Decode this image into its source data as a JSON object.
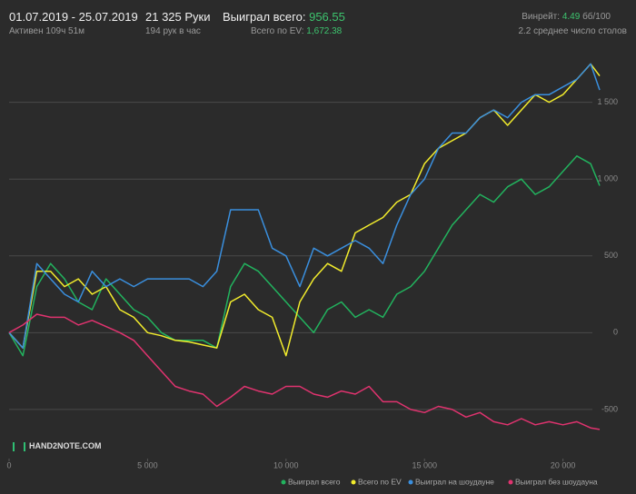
{
  "header": {
    "period": "01.07.2019 - 25.07.2019",
    "active": "Активен 109ч 51м",
    "hands": "21 325 Руки",
    "hands_per_hour": "194 рук в час",
    "won_label": "Выиграл всего:",
    "won_value": "956.55",
    "ev_label": "Всего по EV:",
    "ev_value": "1,672.38",
    "winrate_label": "Винрейт:",
    "winrate_value": "4.49",
    "winrate_unit": "бб/100",
    "tables": "2.2 среднее число столов",
    "logo": "HAND2NOTE.COM"
  },
  "chart_data": {
    "type": "line",
    "x": [
      0,
      500,
      1000,
      1500,
      2000,
      2500,
      3000,
      3500,
      4000,
      4500,
      5000,
      5500,
      6000,
      6500,
      7000,
      7500,
      8000,
      8500,
      9000,
      9500,
      10000,
      10500,
      11000,
      11500,
      12000,
      12500,
      13000,
      13500,
      14000,
      14500,
      15000,
      15500,
      16000,
      16500,
      17000,
      17500,
      18000,
      18500,
      19000,
      19500,
      20000,
      20500,
      21000,
      21325
    ],
    "xlim": [
      0,
      21325
    ],
    "xticks": [
      0,
      {
        "value": 5000,
        "label": "5 000"
      },
      {
        "value": 10000,
        "label": "10 000"
      },
      {
        "value": 15000,
        "label": "15 000"
      },
      {
        "value": 20000,
        "label": "20 000"
      }
    ],
    "ylim": [
      -820,
      1900
    ],
    "yticks": [
      -500,
      0,
      500,
      {
        "value": 1000,
        "label": "1 000"
      },
      {
        "value": 1500,
        "label": "1 500"
      }
    ],
    "grid": true,
    "series": [
      {
        "name": "Выиграл всего",
        "color": "#22b35e",
        "values": [
          0,
          -150,
          300,
          450,
          350,
          200,
          150,
          350,
          250,
          150,
          100,
          0,
          -50,
          -50,
          -50,
          -100,
          300,
          450,
          400,
          300,
          200,
          100,
          0,
          150,
          200,
          100,
          150,
          100,
          250,
          300,
          400,
          550,
          700,
          800,
          900,
          850,
          950,
          1000,
          900,
          950,
          1050,
          1150,
          1100,
          957
        ]
      },
      {
        "name": "Всего по EV",
        "color": "#f2ec2c",
        "values": [
          0,
          -100,
          400,
          400,
          300,
          350,
          250,
          300,
          150,
          100,
          0,
          -20,
          -50,
          -60,
          -80,
          -100,
          200,
          250,
          150,
          100,
          -150,
          200,
          350,
          450,
          400,
          650,
          700,
          750,
          850,
          900,
          1100,
          1200,
          1250,
          1300,
          1400,
          1450,
          1350,
          1450,
          1550,
          1500,
          1550,
          1650,
          1750,
          1672
        ]
      },
      {
        "name": "Выиграл на шоудауне",
        "color": "#3a8fde",
        "values": [
          0,
          -100,
          450,
          350,
          250,
          200,
          400,
          300,
          350,
          300,
          350,
          350,
          350,
          350,
          300,
          400,
          800,
          800,
          800,
          550,
          500,
          300,
          550,
          500,
          550,
          600,
          550,
          450,
          700,
          900,
          1000,
          1200,
          1300,
          1300,
          1400,
          1450,
          1400,
          1500,
          1550,
          1550,
          1600,
          1650,
          1750,
          1580
        ]
      },
      {
        "name": "Выиграл без шоудауна",
        "color": "#e0336f",
        "values": [
          0,
          50,
          120,
          100,
          100,
          50,
          80,
          40,
          0,
          -50,
          -150,
          -250,
          -350,
          -380,
          -400,
          -480,
          -420,
          -350,
          -380,
          -400,
          -350,
          -350,
          -400,
          -420,
          -380,
          -400,
          -350,
          -450,
          -450,
          -500,
          -520,
          -480,
          -500,
          -550,
          -520,
          -580,
          -600,
          -560,
          -600,
          -580,
          -600,
          -580,
          -620,
          -630
        ]
      }
    ]
  }
}
